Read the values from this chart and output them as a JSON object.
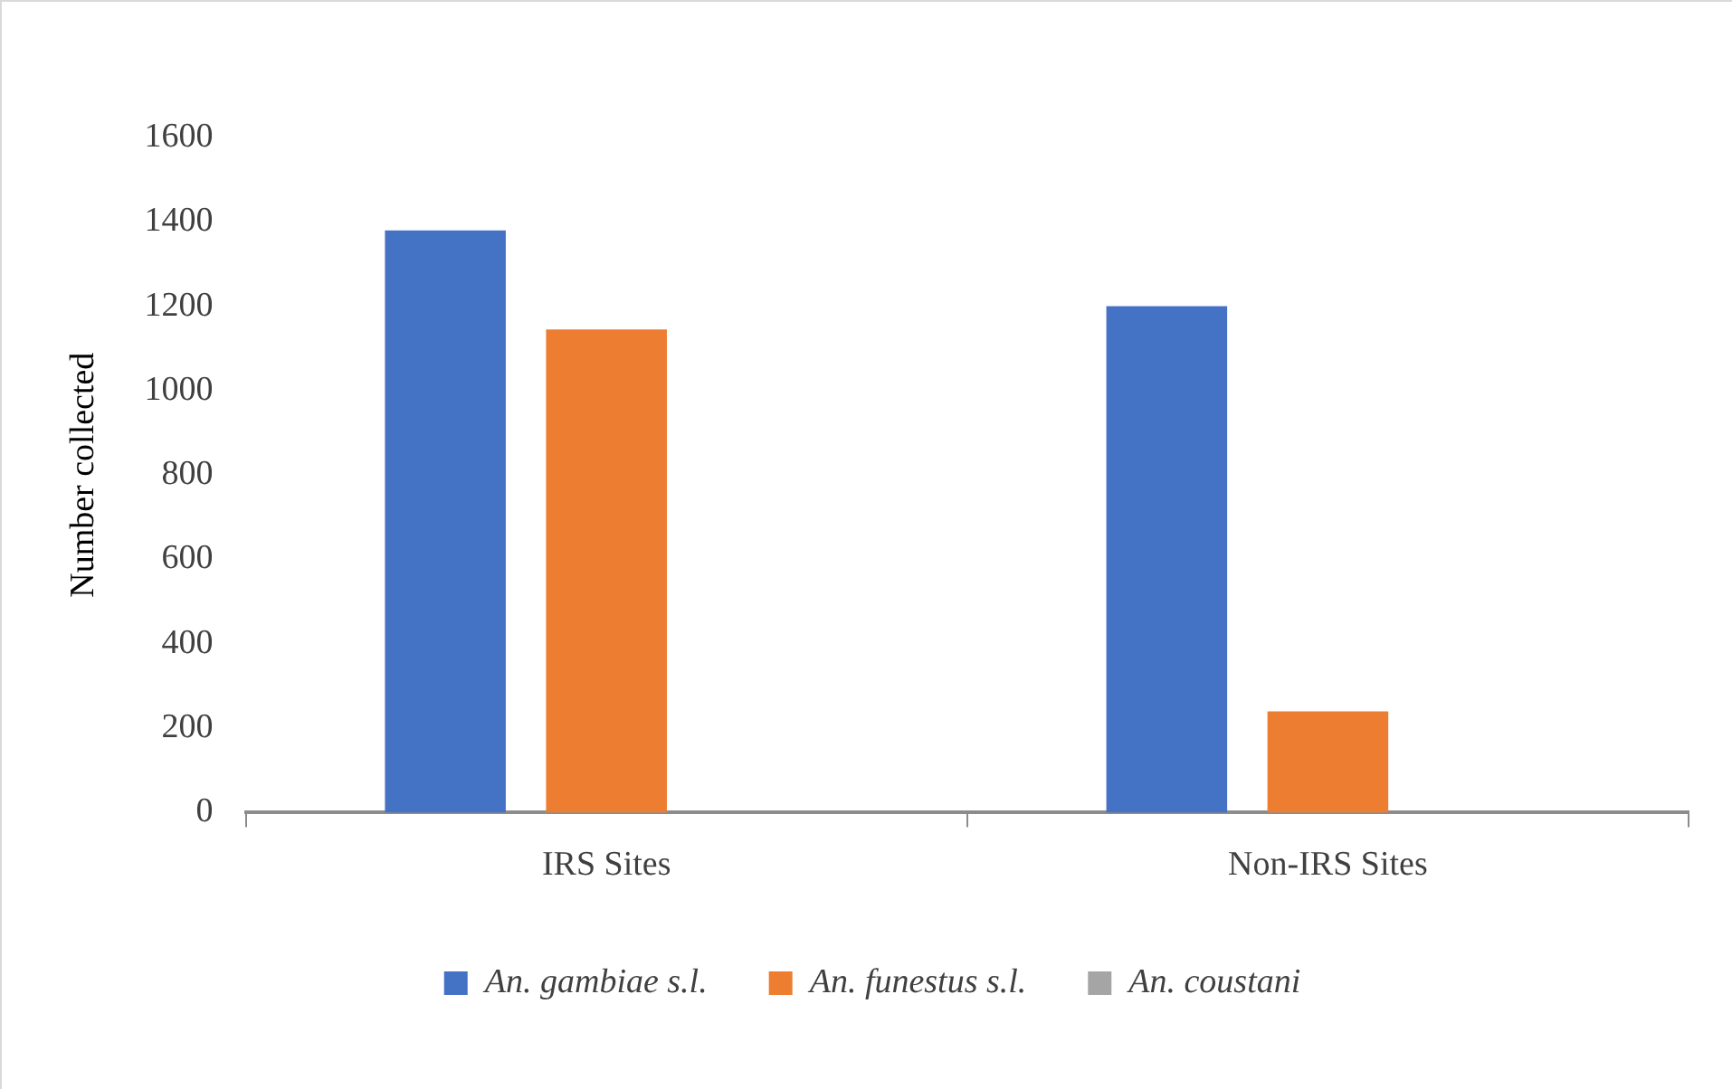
{
  "chart_data": {
    "type": "bar",
    "ylabel": "Number collected",
    "categories": [
      "IRS Sites",
      "Non-IRS Sites"
    ],
    "series": [
      {
        "name": "An. gambiae s.l.",
        "color": "#4472c4",
        "values": [
          1380,
          1200
        ]
      },
      {
        "name": "An. funestus s.l.",
        "color": "#ed7d31",
        "values": [
          1145,
          240
        ]
      },
      {
        "name": "An. coustani",
        "color": "#a5a5a5",
        "values": [
          0,
          0
        ]
      }
    ],
    "ylim": [
      0,
      1600
    ],
    "yticks": [
      0,
      200,
      400,
      600,
      800,
      1000,
      1200,
      1400,
      1600
    ],
    "grid": false,
    "legend": "bottom"
  }
}
